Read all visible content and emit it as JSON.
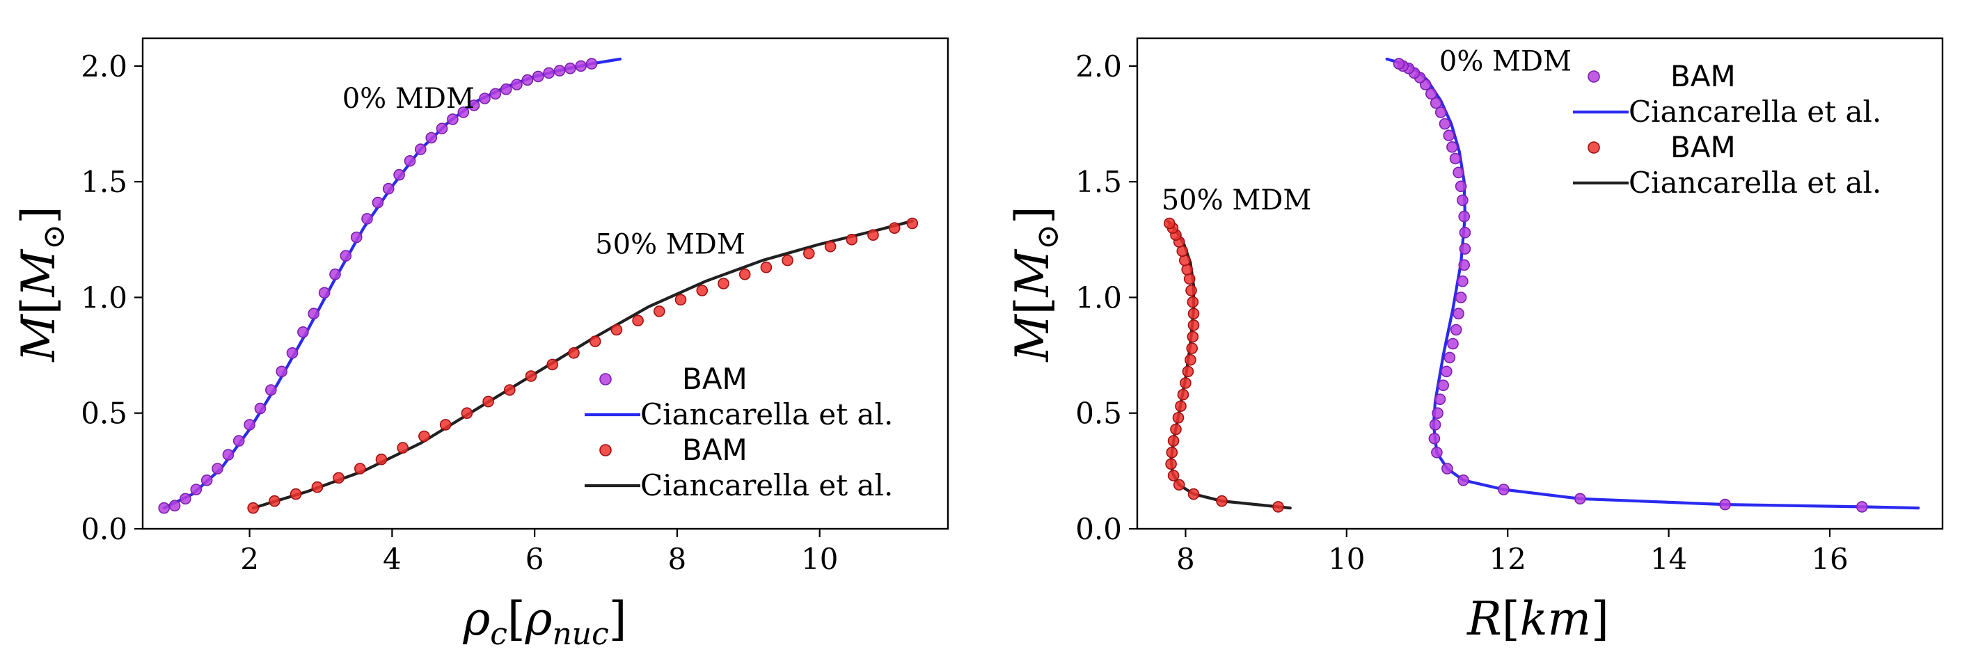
{
  "colors": {
    "bam_0": "#b73fe0",
    "bam_0_edge": "#7a1fb0",
    "line_0": "#2a2af0",
    "bam_50": "#f0322e",
    "bam_50_edge": "#a01010",
    "line_50": "#202020"
  },
  "chart_data": [
    {
      "type": "scatter",
      "title": "",
      "xlabel": "ρc[ρnuc]",
      "ylabel": "M[M⊙]",
      "xlim": [
        0.5,
        11.8
      ],
      "ylim": [
        0.0,
        2.12
      ],
      "xticks": [
        2,
        4,
        6,
        8,
        10
      ],
      "yticks": [
        0.0,
        0.5,
        1.0,
        1.5,
        2.0
      ],
      "xtick_labels": [
        "2",
        "4",
        "6",
        "8",
        "10"
      ],
      "ytick_labels": [
        "0.0",
        "0.5",
        "1.0",
        "1.5",
        "2.0"
      ],
      "annotations": [
        {
          "text": "0% MDM",
          "x": 3.3,
          "y": 1.82
        },
        {
          "text": "50% MDM",
          "x": 6.85,
          "y": 1.19
        }
      ],
      "legend": {
        "placement": "lower-right",
        "entries": [
          {
            "label": "BAM",
            "kind": "marker",
            "color_key": "bam_0"
          },
          {
            "label": "Ciancarella et al.",
            "kind": "line",
            "color_key": "line_0"
          },
          {
            "label": "BAM",
            "kind": "marker",
            "color_key": "bam_50"
          },
          {
            "label": "Ciancarella et al.",
            "kind": "line",
            "color_key": "line_50"
          }
        ]
      },
      "series": [
        {
          "name": "Ciancarella et al. (0% MDM)",
          "kind": "line",
          "color_key": "line_0",
          "x": [
            0.8,
            1.2,
            1.6,
            2.0,
            2.4,
            2.8,
            3.2,
            3.6,
            4.0,
            4.4,
            4.8,
            5.2,
            5.6,
            6.0,
            6.4,
            6.8,
            7.2
          ],
          "y": [
            0.09,
            0.15,
            0.26,
            0.43,
            0.63,
            0.85,
            1.08,
            1.3,
            1.48,
            1.64,
            1.76,
            1.85,
            1.91,
            1.955,
            1.985,
            2.01,
            2.03
          ]
        },
        {
          "name": "BAM (0% MDM)",
          "kind": "scatter",
          "color_key": "bam_0",
          "x": [
            0.8,
            0.95,
            1.1,
            1.25,
            1.4,
            1.55,
            1.7,
            1.85,
            2.0,
            2.15,
            2.3,
            2.45,
            2.6,
            2.75,
            2.9,
            3.05,
            3.2,
            3.35,
            3.5,
            3.65,
            3.8,
            3.95,
            4.1,
            4.25,
            4.4,
            4.55,
            4.7,
            4.85,
            5.0,
            5.15,
            5.3,
            5.45,
            5.6,
            5.75,
            5.9,
            6.05,
            6.2,
            6.35,
            6.5,
            6.65,
            6.8
          ],
          "y": [
            0.09,
            0.1,
            0.13,
            0.17,
            0.21,
            0.26,
            0.32,
            0.38,
            0.45,
            0.52,
            0.6,
            0.68,
            0.76,
            0.85,
            0.93,
            1.02,
            1.1,
            1.18,
            1.26,
            1.34,
            1.41,
            1.47,
            1.53,
            1.59,
            1.64,
            1.69,
            1.73,
            1.77,
            1.8,
            1.83,
            1.86,
            1.88,
            1.9,
            1.92,
            1.94,
            1.955,
            1.97,
            1.98,
            1.99,
            2.0,
            2.01
          ]
        },
        {
          "name": "Ciancarella et al. (50% MDM)",
          "kind": "line",
          "color_key": "line_50",
          "x": [
            2.05,
            2.8,
            3.6,
            4.4,
            5.2,
            6.0,
            6.8,
            7.6,
            8.4,
            9.2,
            10.0,
            10.8,
            11.3
          ],
          "y": [
            0.09,
            0.16,
            0.25,
            0.37,
            0.52,
            0.67,
            0.82,
            0.96,
            1.07,
            1.16,
            1.23,
            1.29,
            1.33
          ]
        },
        {
          "name": "BAM (50% MDM)",
          "kind": "scatter",
          "color_key": "bam_50",
          "x": [
            2.05,
            2.35,
            2.65,
            2.95,
            3.25,
            3.55,
            3.85,
            4.15,
            4.45,
            4.75,
            5.05,
            5.35,
            5.65,
            5.95,
            6.25,
            6.55,
            6.85,
            7.15,
            7.45,
            7.75,
            8.05,
            8.35,
            8.65,
            8.95,
            9.25,
            9.55,
            9.85,
            10.15,
            10.45,
            10.75,
            11.05,
            11.3
          ],
          "y": [
            0.09,
            0.12,
            0.15,
            0.18,
            0.22,
            0.26,
            0.3,
            0.35,
            0.4,
            0.45,
            0.5,
            0.55,
            0.6,
            0.66,
            0.71,
            0.76,
            0.81,
            0.86,
            0.9,
            0.94,
            0.99,
            1.03,
            1.06,
            1.1,
            1.13,
            1.16,
            1.19,
            1.22,
            1.25,
            1.27,
            1.3,
            1.32
          ]
        }
      ]
    },
    {
      "type": "scatter",
      "title": "",
      "xlabel": "R[km]",
      "ylabel": "M[M⊙]",
      "xlim": [
        7.4,
        17.4
      ],
      "ylim": [
        0.0,
        2.12
      ],
      "xticks": [
        8,
        10,
        12,
        14,
        16
      ],
      "yticks": [
        0.0,
        0.5,
        1.0,
        1.5,
        2.0
      ],
      "xtick_labels": [
        "8",
        "10",
        "12",
        "14",
        "16"
      ],
      "ytick_labels": [
        "0.0",
        "0.5",
        "1.0",
        "1.5",
        "2.0"
      ],
      "annotations": [
        {
          "text": "0% MDM",
          "x": 11.15,
          "y": 1.98
        },
        {
          "text": "50% MDM",
          "x": 7.7,
          "y": 1.38
        }
      ],
      "legend": {
        "placement": "upper-right",
        "entries": [
          {
            "label": "BAM",
            "kind": "marker",
            "color_key": "bam_0"
          },
          {
            "label": "Ciancarella et al.",
            "kind": "line",
            "color_key": "line_0"
          },
          {
            "label": "BAM",
            "kind": "marker",
            "color_key": "bam_50"
          },
          {
            "label": "Ciancarella et al.",
            "kind": "line",
            "color_key": "line_50"
          }
        ]
      },
      "series": [
        {
          "name": "Ciancarella et al. (0% MDM)",
          "kind": "line",
          "color_key": "line_0",
          "x": [
            17.1,
            16.4,
            14.7,
            12.9,
            11.95,
            11.45,
            11.25,
            11.12,
            11.08,
            11.1,
            11.2,
            11.32,
            11.42,
            11.47,
            11.46,
            11.4,
            11.3,
            11.17,
            11.0,
            10.8,
            10.5
          ],
          "y": [
            0.09,
            0.095,
            0.105,
            0.13,
            0.17,
            0.21,
            0.26,
            0.33,
            0.45,
            0.55,
            0.75,
            0.95,
            1.15,
            1.35,
            1.5,
            1.63,
            1.75,
            1.85,
            1.94,
            2.0,
            2.03
          ]
        },
        {
          "name": "BAM (0% MDM)",
          "kind": "scatter",
          "color_key": "bam_0",
          "x": [
            16.4,
            14.7,
            12.9,
            11.95,
            11.45,
            11.25,
            11.12,
            11.09,
            11.1,
            11.13,
            11.16,
            11.2,
            11.24,
            11.28,
            11.32,
            11.36,
            11.39,
            11.42,
            11.44,
            11.46,
            11.47,
            11.47,
            11.46,
            11.44,
            11.42,
            11.39,
            11.35,
            11.31,
            11.27,
            11.22,
            11.17,
            11.11,
            11.05,
            10.98,
            10.91,
            10.84,
            10.77,
            10.7,
            10.65
          ],
          "y": [
            0.095,
            0.105,
            0.13,
            0.17,
            0.21,
            0.26,
            0.33,
            0.39,
            0.45,
            0.5,
            0.56,
            0.62,
            0.68,
            0.74,
            0.8,
            0.86,
            0.93,
            1.0,
            1.07,
            1.14,
            1.21,
            1.28,
            1.35,
            1.42,
            1.48,
            1.54,
            1.6,
            1.65,
            1.7,
            1.75,
            1.8,
            1.84,
            1.88,
            1.92,
            1.95,
            1.97,
            1.99,
            2.0,
            2.01
          ]
        },
        {
          "name": "Ciancarella et al. (50% MDM)",
          "kind": "line",
          "color_key": "line_50",
          "x": [
            9.3,
            9.15,
            8.45,
            8.1,
            7.92,
            7.84,
            7.82,
            7.86,
            7.93,
            8.0,
            8.06,
            8.1,
            8.1,
            8.06,
            7.98,
            7.88,
            7.78
          ],
          "y": [
            0.09,
            0.095,
            0.12,
            0.15,
            0.19,
            0.24,
            0.3,
            0.4,
            0.52,
            0.65,
            0.8,
            0.95,
            1.05,
            1.15,
            1.23,
            1.29,
            1.33
          ]
        },
        {
          "name": "BAM (50% MDM)",
          "kind": "scatter",
          "color_key": "bam_50",
          "x": [
            9.15,
            8.45,
            8.1,
            7.92,
            7.85,
            7.82,
            7.83,
            7.85,
            7.88,
            7.91,
            7.94,
            7.97,
            8.0,
            8.03,
            8.06,
            8.08,
            8.09,
            8.1,
            8.1,
            8.09,
            8.07,
            8.05,
            8.02,
            7.99,
            7.96,
            7.92,
            7.88,
            7.84,
            7.8
          ],
          "y": [
            0.095,
            0.12,
            0.15,
            0.19,
            0.23,
            0.28,
            0.33,
            0.38,
            0.43,
            0.48,
            0.53,
            0.58,
            0.63,
            0.68,
            0.73,
            0.78,
            0.83,
            0.88,
            0.93,
            0.98,
            1.03,
            1.08,
            1.12,
            1.16,
            1.2,
            1.24,
            1.27,
            1.3,
            1.32
          ]
        }
      ]
    }
  ]
}
